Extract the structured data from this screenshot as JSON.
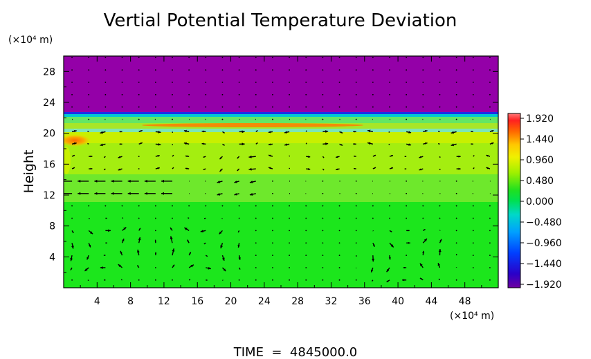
{
  "title": "Vertial Potential Temperature Deviation",
  "y_unit": "(×10⁴ m)",
  "x_unit": "(×10⁴ m)",
  "ylabel": "Height",
  "footer": "TIME  =  4845000.0",
  "chart_data": {
    "type": "heatmap",
    "title": "Vertial Potential Temperature Deviation",
    "xlabel": "",
    "ylabel": "Height",
    "x_unit_label": "(×10⁴ m)",
    "y_unit_label": "(×10⁴ m)",
    "xlim": [
      0,
      52
    ],
    "ylim": [
      0,
      30
    ],
    "x_ticks": [
      "4",
      "8",
      "12",
      "16",
      "20",
      "24",
      "28",
      "32",
      "36",
      "40",
      "44",
      "48"
    ],
    "y_ticks": [
      "4",
      "8",
      "12",
      "16",
      "20",
      "24",
      "28"
    ],
    "colorbar_ticks": [
      "1.920",
      "1.440",
      "0.960",
      "0.480",
      "0.000",
      "−0.480",
      "−0.960",
      "−1.440",
      "−1.920"
    ],
    "colorbar_range": [
      -1.92,
      1.92
    ],
    "field_bands": [
      {
        "height_range": [
          22.5,
          30
        ],
        "value": -1.92,
        "note": "uniform"
      },
      {
        "height_range": [
          21.5,
          22.5
        ],
        "value": 0.0
      },
      {
        "height_range": [
          19.5,
          21.5
        ],
        "value": 0.5
      },
      {
        "height_range": [
          18.5,
          19.5
        ],
        "value": 0.7
      },
      {
        "height_range": [
          14,
          18.5
        ],
        "value": 0.35
      },
      {
        "height_range": [
          11,
          14
        ],
        "value": 0.2
      },
      {
        "height_range": [
          0,
          11
        ],
        "value": 0.05
      }
    ],
    "hotspot": {
      "x": 1.5,
      "y": 19.2,
      "value": 1.35
    },
    "circulation_cells": [
      {
        "center_x": 5,
        "center_y": 5
      },
      {
        "center_x": 16.5,
        "center_y": 5
      },
      {
        "center_x": 41,
        "center_y": 4
      }
    ],
    "footer": "TIME  =  4845000.0"
  },
  "colors": {
    "purple": "#9400a8",
    "green": "#14e614",
    "yellow_green": "#b4f000",
    "orange": "#ff8c00",
    "cyan": "#00c8d2"
  }
}
